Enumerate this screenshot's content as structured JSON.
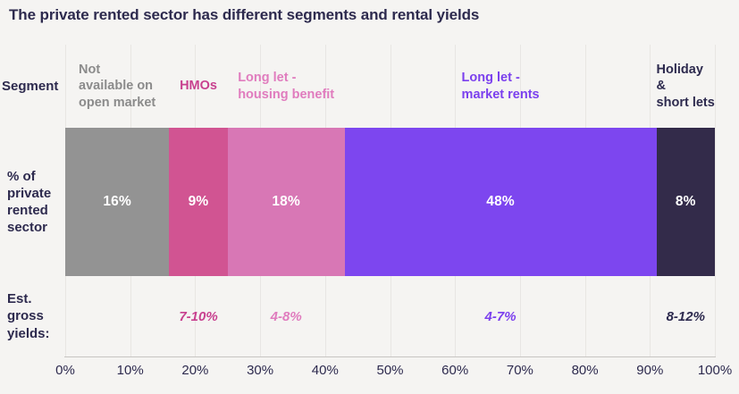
{
  "page": {
    "background_color": "#f5f4f2",
    "text_dark_color": "#2d2a4e",
    "gridline_color": "#e8e6e3",
    "axis_line_color": "#c7c5c2"
  },
  "title": "The private rented sector has different segments and rental yields",
  "rows": {
    "segment_label": "Segment",
    "share_label": "% of\nprivate\nrented\nsector",
    "yields_label": "Est.\ngross\nyields:"
  },
  "chart_data": {
    "type": "bar",
    "subtype": "stacked-horizontal-100pct",
    "title": "The private rented sector has different segments and rental yields",
    "xlabel": "",
    "ylabel": "",
    "x_range": [
      0,
      100
    ],
    "grid": true,
    "x_ticks": [
      "0%",
      "10%",
      "20%",
      "30%",
      "40%",
      "50%",
      "60%",
      "70%",
      "80%",
      "90%",
      "100%"
    ],
    "segments": [
      {
        "name": "Not available on open market",
        "label_text": "Not\navailable on\nopen market",
        "share_pct": 16,
        "share_label": "16%",
        "gross_yield": "",
        "color": "#939393",
        "label_color": "#8b8b8b",
        "bar_width": "16%"
      },
      {
        "name": "HMOs",
        "label_text": "HMOs",
        "share_pct": 9,
        "share_label": "9%",
        "gross_yield": "7-10%",
        "color": "#d15492",
        "label_color": "#c8418f",
        "bar_width": "9%"
      },
      {
        "name": "Long let - housing benefit",
        "label_text": "Long let -\nhousing benefit",
        "share_pct": 18,
        "share_label": "18%",
        "gross_yield": "4-8%",
        "color": "#d877b5",
        "label_color": "#e07cbe",
        "bar_width": "18%"
      },
      {
        "name": "Long let - market rents",
        "label_text": "Long let -\nmarket rents",
        "share_pct": 48,
        "share_label": "48%",
        "gross_yield": "4-7%",
        "color": "#7d46ef",
        "label_color": "#7b40ee",
        "bar_width": "48%"
      },
      {
        "name": "Holiday & short lets",
        "label_text": "Holiday &\nshort lets",
        "share_pct": 8,
        "share_label": "8%",
        "gross_yield": "8-12%",
        "color": "#332b4a",
        "label_color": "#2d2a4e",
        "bar_width": "9%"
      }
    ]
  }
}
